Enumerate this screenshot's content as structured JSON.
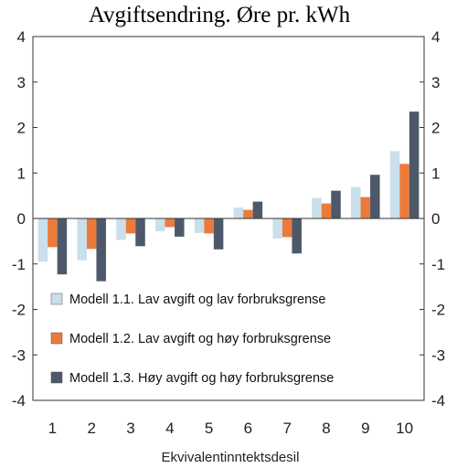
{
  "chart_data": {
    "type": "bar",
    "title": "Avgiftsendring. Øre pr. kWh",
    "xlabel": "Ekvivalentinntektsdesil",
    "ylabel": "",
    "categories": [
      "1",
      "2",
      "3",
      "4",
      "5",
      "6",
      "7",
      "8",
      "9",
      "10"
    ],
    "ylim": [
      -4,
      4
    ],
    "yticks": [
      "-4",
      "-3",
      "-2",
      "-1",
      "0",
      "1",
      "2",
      "3",
      "4"
    ],
    "grid": false,
    "legend_position": "bottom-center-inside",
    "series": [
      {
        "name": "Modell 1.1. Lav avgift og lav forbruksgrense",
        "color": "#c9dfea",
        "values": [
          -0.95,
          -0.92,
          -0.47,
          -0.28,
          -0.32,
          0.24,
          -0.44,
          0.45,
          0.69,
          1.48
        ]
      },
      {
        "name": "Modell 1.2. Lav avgift og høy forbruksgrense",
        "color": "#ec7a3a",
        "values": [
          -0.63,
          -0.67,
          -0.33,
          -0.19,
          -0.33,
          0.19,
          -0.41,
          0.33,
          0.47,
          1.2
        ]
      },
      {
        "name": "Modell 1.3. Høy avgift og høy forbruksgrense",
        "color": "#4d596a",
        "values": [
          -1.23,
          -1.38,
          -0.61,
          -0.4,
          -0.68,
          0.37,
          -0.77,
          0.61,
          0.96,
          2.35
        ]
      }
    ]
  }
}
